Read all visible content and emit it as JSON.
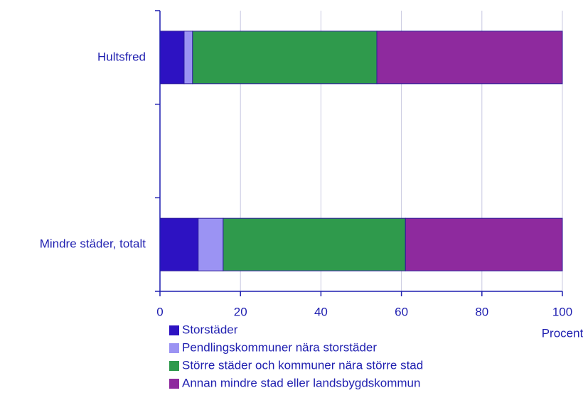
{
  "chart_data": {
    "type": "stacked-barh",
    "categories": [
      "Hultsfred",
      null,
      "Mindre städer, totalt"
    ],
    "series": [
      {
        "name": "Storstäder",
        "color": "#2d12c2",
        "values": [
          6.0,
          null,
          9.5
        ]
      },
      {
        "name": "Pendlingskommuner nära storstäder",
        "color": "#9b93f3",
        "values": [
          2.1,
          null,
          6.2
        ]
      },
      {
        "name": "Större städer och kommuner nära större stad",
        "color": "#2f9a4c",
        "values": [
          45.8,
          null,
          45.3
        ]
      },
      {
        "name": "Annan mindre stad eller landsbygdskommun",
        "color": "#8e2a9e",
        "values": [
          46.1,
          null,
          39.0
        ]
      }
    ],
    "xlabel": "Procent",
    "xlim": [
      0,
      100
    ],
    "xticks": [
      0,
      20,
      40,
      60,
      80,
      100
    ],
    "grid": true
  }
}
